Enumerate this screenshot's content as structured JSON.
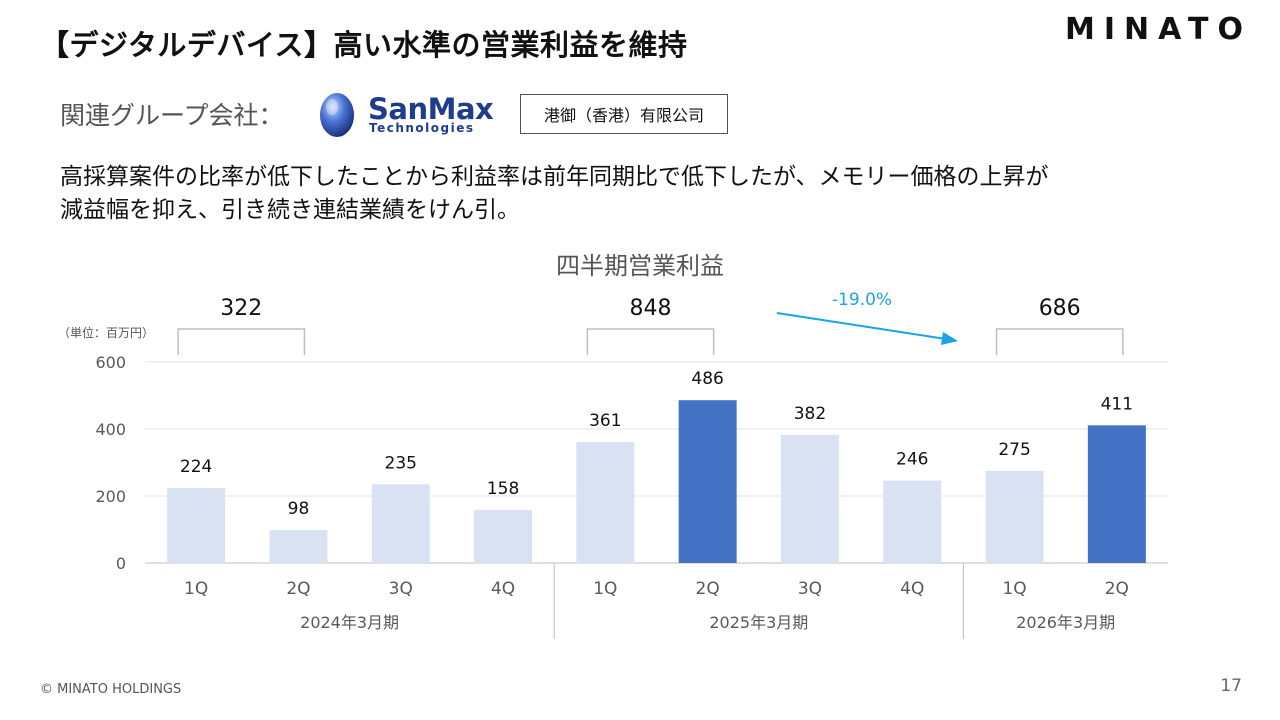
{
  "header": {
    "title": "【デジタルデバイス】高い水準の営業利益を維持",
    "logo": "MINATO"
  },
  "group": {
    "label": "関連グループ会社：",
    "logo_name": "SanMax",
    "logo_sub": "Technologies",
    "company": "港御（香港）有限公司"
  },
  "description": {
    "line1": "高採算案件の比率が低下したことから利益率は前年同期比で低下したが、メモリー価格の上昇が",
    "line2": "減益幅を抑え、引き続き連結業績をけん引。"
  },
  "chart_data": {
    "type": "bar",
    "title": "四半期営業利益",
    "unit_label": "（単位：百万円）",
    "categories": [
      "1Q",
      "2Q",
      "3Q",
      "4Q",
      "1Q",
      "2Q",
      "3Q",
      "4Q",
      "1Q",
      "2Q"
    ],
    "values": [
      224,
      98,
      235,
      158,
      361,
      486,
      382,
      246,
      275,
      411
    ],
    "highlight": [
      false,
      false,
      false,
      false,
      false,
      true,
      false,
      false,
      false,
      true
    ],
    "ylim": [
      0,
      600
    ],
    "yticks": [
      0,
      200,
      400,
      600
    ],
    "grid": true,
    "groups": [
      {
        "label": "2024年3月期",
        "start": 0,
        "end": 3
      },
      {
        "label": "2025年3月期",
        "start": 4,
        "end": 7
      },
      {
        "label": "2026年3月期",
        "start": 8,
        "end": 9
      }
    ],
    "bracket_totals": [
      {
        "value": "322",
        "start": 0,
        "end": 1
      },
      {
        "value": "848",
        "start": 4,
        "end": 5
      },
      {
        "value": "686",
        "start": 8,
        "end": 9
      }
    ],
    "change_annotation": "-19.0%",
    "colors": {
      "bar": "#d9e2f3",
      "highlight": "#4472c4",
      "arrow": "#1aa3e8"
    }
  },
  "footer": {
    "copyright": "© MINATO HOLDINGS",
    "page": "17"
  }
}
